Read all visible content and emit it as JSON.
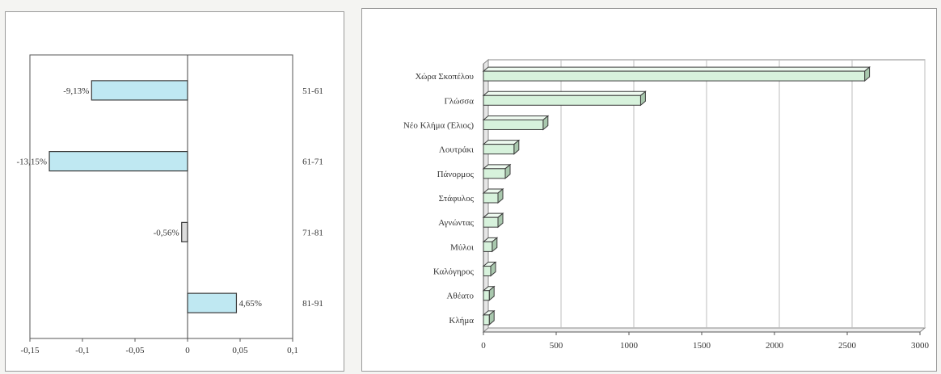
{
  "chart_data": [
    {
      "type": "bar",
      "orientation": "horizontal",
      "categories": [
        "51-61",
        "61-71",
        "71-81",
        "81-91"
      ],
      "values": [
        -0.0913,
        -0.1315,
        -0.0056,
        0.0465
      ],
      "data_labels": [
        "-9,13%",
        "-13,15%",
        "-0,56%",
        "4,65%"
      ],
      "xlim": [
        -0.15,
        0.1
      ],
      "xticks": [
        -0.15,
        -0.1,
        -0.05,
        0,
        0.05,
        0.1
      ],
      "xtick_labels": [
        "-0,15",
        "-0,1",
        "-0,05",
        "0",
        "0,05",
        "0,1"
      ],
      "bar_colors": [
        "#bfe8f2",
        "#bfe8f2",
        "#dcdcdc",
        "#bfe8f2"
      ],
      "category_labels_position": "right",
      "grid": false
    },
    {
      "type": "bar",
      "orientation": "horizontal",
      "categories": [
        "Χώρα Σκοπέλου",
        "Γλώσσα",
        "Νέο Κλήμα (Έλιος)",
        "Λουτράκι",
        "Πάνορμος",
        "Στάφυλος",
        "Αγνώντας",
        "Μύλοι",
        "Καλόγηρος",
        "Αθέατο",
        "Κλήμα"
      ],
      "values": [
        2620,
        1080,
        410,
        210,
        150,
        100,
        100,
        60,
        50,
        40,
        40
      ],
      "xlim": [
        0,
        3000
      ],
      "xticks": [
        0,
        500,
        1000,
        1500,
        2000,
        2500,
        3000
      ],
      "xtick_labels": [
        "0",
        "500",
        "1000",
        "1500",
        "2000",
        "2500",
        "3000"
      ],
      "bar_color": "#d7f2dc",
      "grid": true,
      "style": "3d"
    }
  ]
}
